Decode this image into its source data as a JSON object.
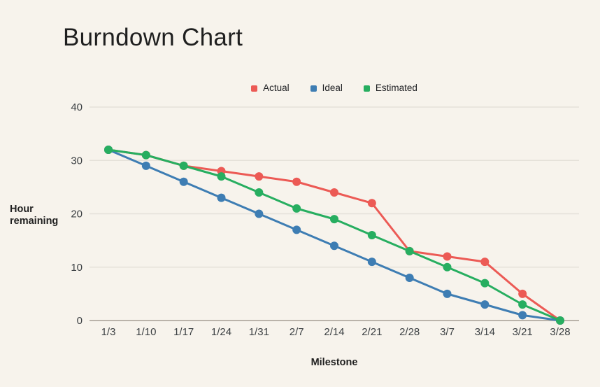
{
  "page": {
    "background": "#f7f3ec"
  },
  "chart_data": {
    "type": "line",
    "title": "Burndown Chart",
    "xlabel": "Milestone",
    "ylabel": "Hour remaining",
    "categories": [
      "1/3",
      "1/10",
      "1/17",
      "1/24",
      "1/31",
      "2/7",
      "2/14",
      "2/21",
      "2/28",
      "3/7",
      "3/14",
      "3/21",
      "3/28"
    ],
    "series": [
      {
        "name": "Actual",
        "color": "#ec5a55",
        "values": [
          32,
          31,
          29,
          28,
          27,
          26,
          24,
          22,
          13,
          12,
          11,
          5,
          0
        ]
      },
      {
        "name": "Ideal",
        "color": "#3e7db3",
        "values": [
          32,
          29,
          26,
          23,
          20,
          17,
          14,
          11,
          8,
          5,
          3,
          1,
          0
        ]
      },
      {
        "name": "Estimated",
        "color": "#27ae60",
        "values": [
          32,
          31,
          29,
          27,
          24,
          21,
          19,
          16,
          13,
          10,
          7,
          3,
          0
        ]
      }
    ],
    "ylim": [
      0,
      40
    ],
    "yticks": [
      0,
      10,
      20,
      30,
      40
    ],
    "grid": true,
    "legend_position": "top",
    "colors": {
      "grid_line": "#e5e1d9",
      "axis_line": "#a59e94",
      "tick_label": "#3c4043"
    }
  }
}
